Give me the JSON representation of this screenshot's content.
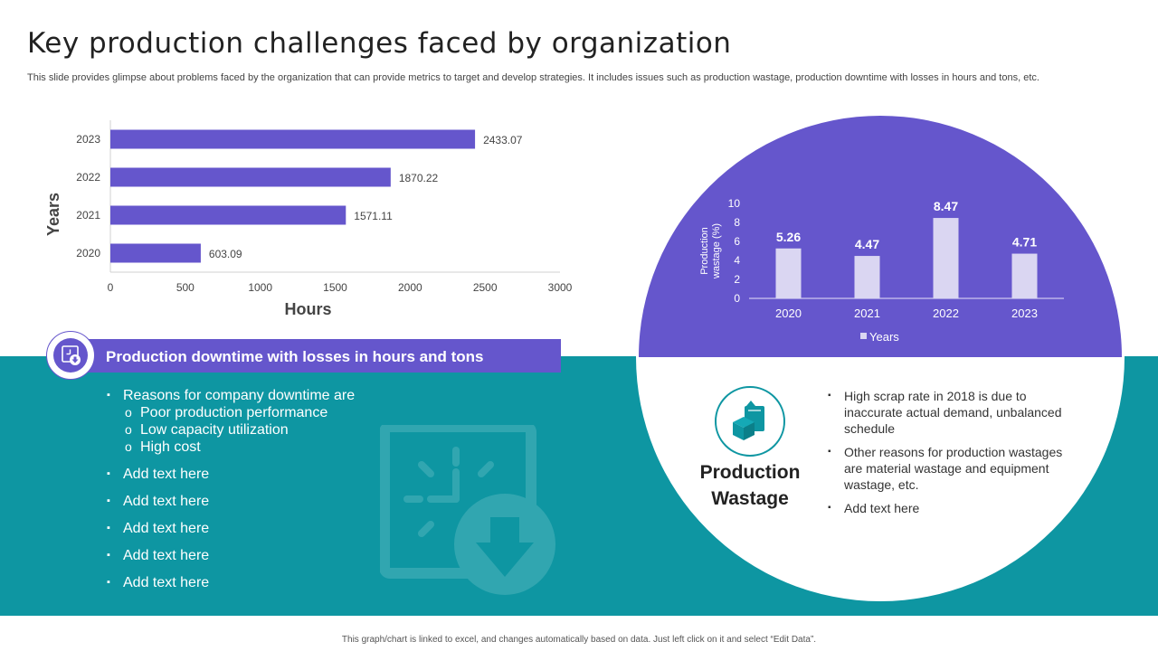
{
  "title": "Key production challenges faced by organization",
  "subtitle": "This slide provides glimpse about problems faced by the organization that can provide metrics to target and develop strategies. It includes issues such as production wastage, production downtime with losses in hours and tons, etc.",
  "chart_data": [
    {
      "type": "bar",
      "orientation": "horizontal",
      "categories": [
        "2023",
        "2022",
        "2021",
        "2020"
      ],
      "values": [
        2433.07,
        1870.22,
        1571.11,
        603.09
      ],
      "value_labels": [
        "2433.07",
        "1870.22",
        "1571.11",
        "603.09"
      ],
      "xlabel": "Hours",
      "ylabel": "Years",
      "xlim": [
        0,
        3000
      ],
      "xticks": [
        "0",
        "500",
        "1000",
        "1500",
        "2000",
        "2500",
        "3000"
      ],
      "color": "#6556CC"
    },
    {
      "type": "bar",
      "categories": [
        "2020",
        "2021",
        "2022",
        "2023"
      ],
      "values": [
        5.26,
        4.47,
        8.47,
        4.71
      ],
      "value_labels": [
        "5.26",
        "4.47",
        "8.47",
        "4.71"
      ],
      "ylabel": "Production wastage (%)",
      "ylim": [
        0,
        10
      ],
      "yticks": [
        "0",
        "2",
        "4",
        "6",
        "8",
        "10"
      ],
      "legend": "Years",
      "legend_position": "bottom",
      "color": "#DAD6F2"
    }
  ],
  "downtime": {
    "banner": "Production downtime with losses in hours and tons",
    "main": "Reasons for company downtime are",
    "subs": [
      "Poor production performance",
      "Low capacity utilization",
      "High cost"
    ],
    "extra": [
      "Add text here",
      "Add text here",
      "Add text here",
      "Add text here",
      "Add text here"
    ]
  },
  "wastage": {
    "title_line1": "Production",
    "title_line2": "Wastage",
    "bullets": [
      "High scrap rate in 2018 is due to inaccurate actual demand, unbalanced schedule",
      "Other reasons for production wastages are material wastage and equipment wastage, etc.",
      "Add text here"
    ]
  },
  "footer": "This graph/chart is linked to excel, and changes automatically based on data. Just left click on it and select “Edit Data”.",
  "colors": {
    "purple": "#6556CC",
    "teal": "#0E96A2",
    "light_bar": "#DAD6F2"
  }
}
